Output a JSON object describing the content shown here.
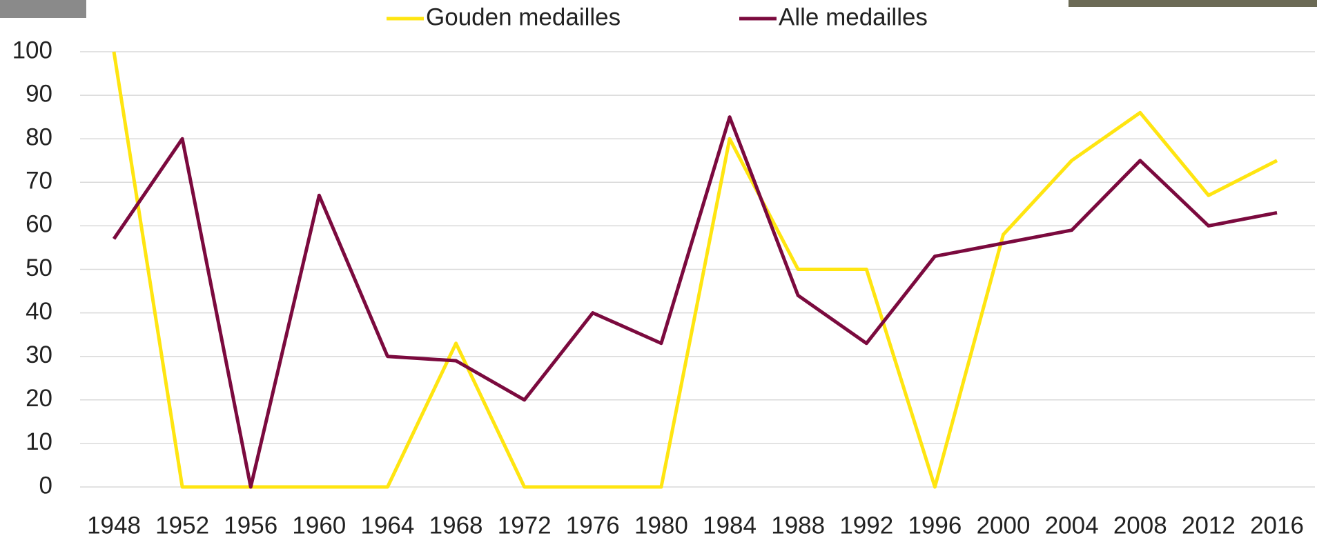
{
  "chart_data": {
    "type": "line",
    "categories": [
      "1948",
      "1952",
      "1956",
      "1960",
      "1964",
      "1968",
      "1972",
      "1976",
      "1980",
      "1984",
      "1988",
      "1992",
      "1996",
      "2000",
      "2004",
      "2008",
      "2012",
      "2016"
    ],
    "series": [
      {
        "name": "Gouden medailles",
        "color": "#ffe511",
        "values": [
          100,
          0,
          0,
          0,
          0,
          33,
          0,
          0,
          0,
          80,
          50,
          50,
          0,
          58,
          75,
          86,
          67,
          75
        ]
      },
      {
        "name": "Alle medailles",
        "color": "#7b0a3e",
        "values": [
          57,
          80,
          0,
          67,
          30,
          29,
          20,
          40,
          33,
          85,
          44,
          33,
          53,
          56,
          59,
          75,
          60,
          63
        ]
      }
    ],
    "ylim": [
      0,
      100
    ],
    "yticks": [
      0,
      10,
      20,
      30,
      40,
      50,
      60,
      70,
      80,
      90,
      100
    ],
    "grid": true,
    "legend": "top"
  }
}
